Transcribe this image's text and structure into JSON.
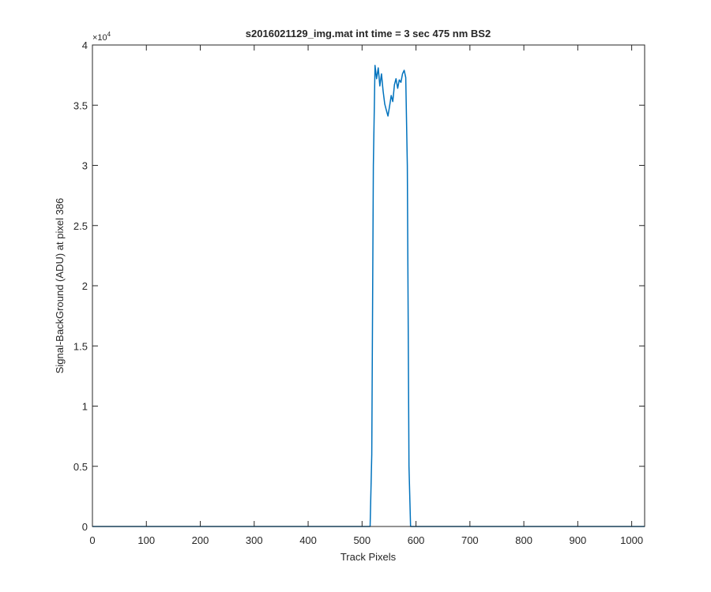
{
  "chart_data": {
    "type": "line",
    "title": "s2016021129_img.mat int time = 3 sec  475 nm BS2",
    "xlabel": "Track Pixels",
    "ylabel": "Signal-BackGround (ADU) at pixel 386",
    "xlim": [
      0,
      1024
    ],
    "ylim": [
      0,
      40000
    ],
    "x_ticks": [
      0,
      100,
      200,
      300,
      400,
      500,
      600,
      700,
      800,
      900,
      1000
    ],
    "x_tick_labels": [
      "0",
      "100",
      "200",
      "300",
      "400",
      "500",
      "600",
      "700",
      "800",
      "900",
      "1000"
    ],
    "y_ticks": [
      0,
      5000,
      10000,
      15000,
      20000,
      25000,
      30000,
      35000,
      40000
    ],
    "y_tick_labels": [
      "0",
      "0.5",
      "1",
      "1.5",
      "2",
      "2.5",
      "3",
      "3.5",
      "4"
    ],
    "y_exponent": {
      "base": "×10",
      "power": "4"
    },
    "grid": false,
    "line_color": "#0072BD",
    "series": [
      {
        "x": [
          0,
          515,
          518,
          521,
          524,
          527,
          530,
          533,
          536,
          539,
          542,
          545,
          548,
          551,
          554,
          557,
          560,
          563,
          566,
          569,
          572,
          575,
          578,
          581,
          584,
          587,
          590,
          1024
        ],
        "values": [
          0,
          0,
          6000,
          30000,
          38300,
          37200,
          38100,
          36600,
          37600,
          36200,
          35100,
          34600,
          34100,
          34900,
          35800,
          35300,
          36700,
          37200,
          36400,
          37100,
          36900,
          37600,
          37900,
          37300,
          30000,
          5000,
          0,
          0
        ]
      }
    ]
  }
}
